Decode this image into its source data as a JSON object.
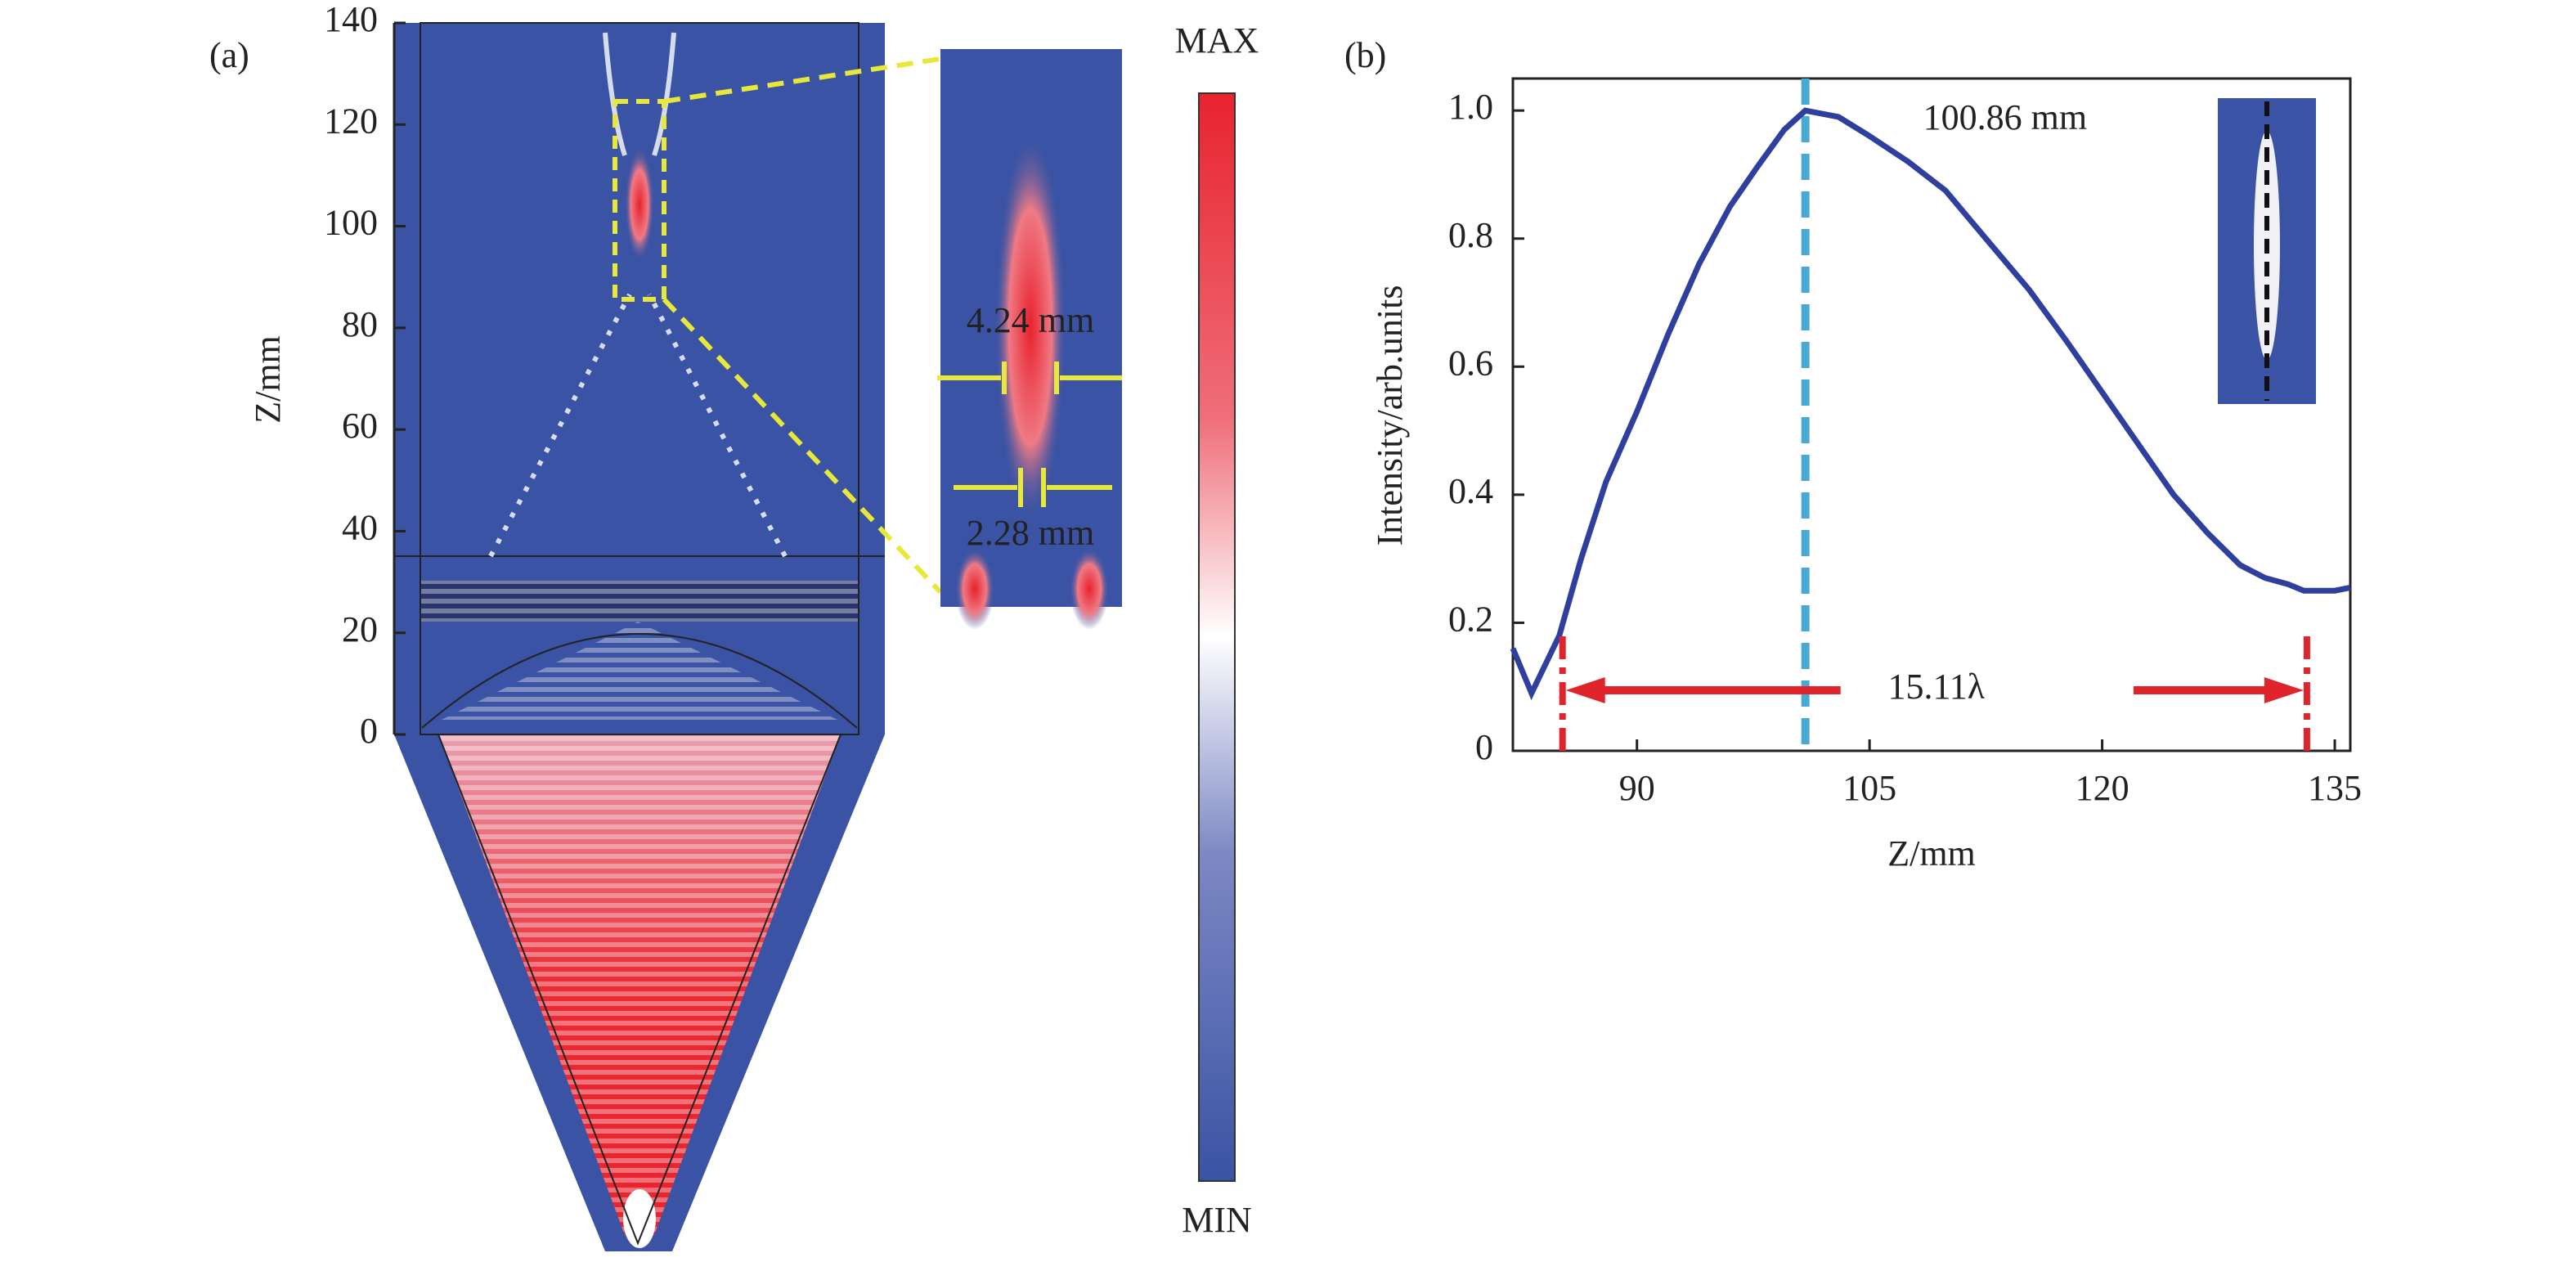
{
  "chart_data": [
    {
      "type": "image",
      "panel_label": "(a)",
      "y_label": "Z/mm",
      "ylim": [
        0,
        140
      ],
      "yticks": [
        0,
        20,
        40,
        60,
        80,
        100,
        120,
        140
      ],
      "annotations": [
        "4.24 mm",
        "2.28 mm"
      ],
      "colorbar_labels": [
        "MAX",
        "MIN"
      ]
    },
    {
      "type": "line",
      "panel_label": "(b)",
      "x_label": "Z/mm",
      "y_label": "Intensity/arb.units",
      "x": [
        82,
        83.2,
        85,
        86.4,
        88,
        90,
        92,
        94,
        96,
        97.7,
        99.5,
        100.86,
        103,
        105,
        107.5,
        109.9,
        112.5,
        115.3,
        117.7,
        120,
        122.3,
        124.6,
        126.8,
        128.9,
        130.5,
        132,
        133,
        134,
        135,
        136
      ],
      "values": [
        0.16,
        0.09,
        0.18,
        0.3,
        0.42,
        0.53,
        0.65,
        0.76,
        0.85,
        0.91,
        0.97,
        1.0,
        0.99,
        0.96,
        0.92,
        0.875,
        0.8,
        0.72,
        0.64,
        0.56,
        0.48,
        0.4,
        0.34,
        0.29,
        0.27,
        0.26,
        0.25,
        0.25,
        0.25,
        0.255
      ],
      "color": "#2e3f9e",
      "xlim": [
        82,
        136
      ],
      "xticks": [
        90,
        105,
        120,
        135
      ],
      "ylim": [
        0,
        1.05
      ],
      "yticks": [
        0,
        0.2,
        0.4,
        0.6,
        0.8,
        {
          "value": 1,
          "label": "1.0"
        }
      ],
      "vlines": [
        {
          "x": 100.86,
          "label": "100.86 mm",
          "color": "#4aa8d4"
        }
      ],
      "span": {
        "x": [
          85.2,
          133.2
        ],
        "label": "15.11λ",
        "color": "#e0242c"
      }
    }
  ]
}
